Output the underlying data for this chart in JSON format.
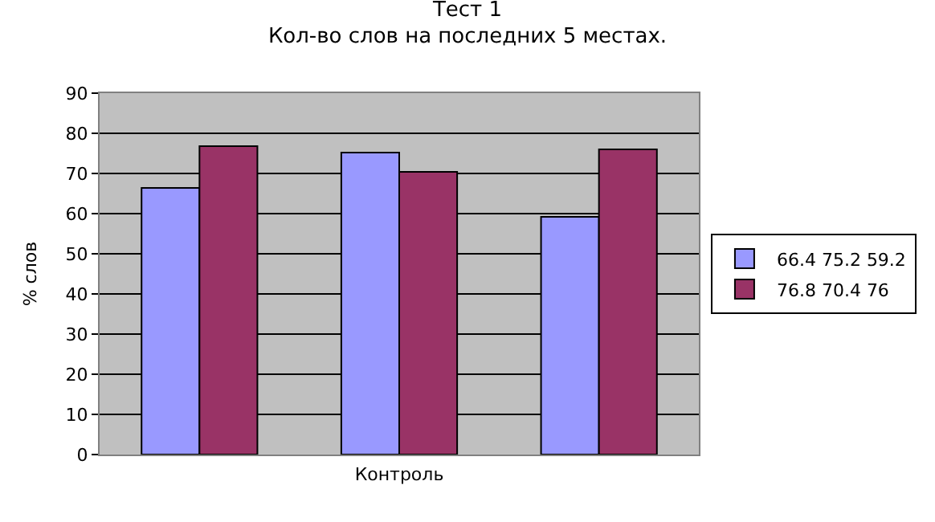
{
  "chart_data": {
    "type": "bar",
    "title": "Тест 1\nКол-во слов на последних 5 местах.",
    "xlabel": "Контроль",
    "ylabel": "% слов",
    "categories": [
      null,
      null,
      null
    ],
    "series": [
      {
        "name": "66.4 75.2 59.2",
        "color": "#9999ff",
        "values": [
          66.4,
          75.2,
          59.2
        ]
      },
      {
        "name": "76.8 70.4 76",
        "color": "#993366",
        "values": [
          76.8,
          70.4,
          76
        ]
      }
    ],
    "ylim": [
      0,
      90
    ],
    "yticks": [
      0,
      10,
      20,
      30,
      40,
      50,
      60,
      70,
      80,
      90
    ],
    "grid": "y",
    "legend": "right",
    "tick_labels": "y"
  }
}
